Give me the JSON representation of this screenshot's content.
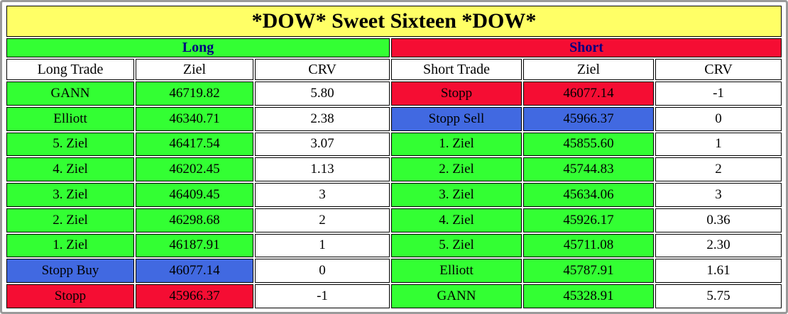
{
  "title": "*DOW* Sweet Sixteen *DOW*",
  "colors": {
    "title_bg": "#ffff66",
    "green": "#33ff33",
    "red": "#f50d33",
    "blue": "#4169e1",
    "section_text": "#000080",
    "frame_border": "#9a9a9a"
  },
  "long": {
    "header": "Long",
    "columns": [
      "Long Trade",
      "Ziel",
      "CRV"
    ]
  },
  "short": {
    "header": "Short",
    "columns": [
      "Short Trade",
      "Ziel",
      "CRV"
    ]
  },
  "rows": [
    {
      "long": {
        "trade": "GANN",
        "ziel": "46719.82",
        "crv": "5.80",
        "color": "green"
      },
      "short": {
        "trade": "Stopp",
        "ziel": "46077.14",
        "crv": "-1",
        "color": "red"
      }
    },
    {
      "long": {
        "trade": "Elliott",
        "ziel": "46340.71",
        "crv": "2.38",
        "color": "green"
      },
      "short": {
        "trade": "Stopp Sell",
        "ziel": "45966.37",
        "crv": "0",
        "color": "blue"
      }
    },
    {
      "long": {
        "trade": "5. Ziel",
        "ziel": "46417.54",
        "crv": "3.07",
        "color": "green"
      },
      "short": {
        "trade": "1. Ziel",
        "ziel": "45855.60",
        "crv": "1",
        "color": "green"
      }
    },
    {
      "long": {
        "trade": "4. Ziel",
        "ziel": "46202.45",
        "crv": "1.13",
        "color": "green"
      },
      "short": {
        "trade": "2. Ziel",
        "ziel": "45744.83",
        "crv": "2",
        "color": "green"
      }
    },
    {
      "long": {
        "trade": "3. Ziel",
        "ziel": "46409.45",
        "crv": "3",
        "color": "green"
      },
      "short": {
        "trade": "3. Ziel",
        "ziel": "45634.06",
        "crv": "3",
        "color": "green"
      }
    },
    {
      "long": {
        "trade": "2. Ziel",
        "ziel": "46298.68",
        "crv": "2",
        "color": "green"
      },
      "short": {
        "trade": "4. Ziel",
        "ziel": "45926.17",
        "crv": "0.36",
        "color": "green"
      }
    },
    {
      "long": {
        "trade": "1. Ziel",
        "ziel": "46187.91",
        "crv": "1",
        "color": "green"
      },
      "short": {
        "trade": "5. Ziel",
        "ziel": "45711.08",
        "crv": "2.30",
        "color": "green"
      }
    },
    {
      "long": {
        "trade": "Stopp Buy",
        "ziel": "46077.14",
        "crv": "0",
        "color": "blue"
      },
      "short": {
        "trade": "Elliott",
        "ziel": "45787.91",
        "crv": "1.61",
        "color": "green"
      }
    },
    {
      "long": {
        "trade": "Stopp",
        "ziel": "45966.37",
        "crv": "-1",
        "color": "red"
      },
      "short": {
        "trade": "GANN",
        "ziel": "45328.91",
        "crv": "5.75",
        "color": "green"
      }
    }
  ],
  "chart_data": {
    "type": "table",
    "title": "*DOW* Sweet Sixteen *DOW*",
    "sections": [
      "Long",
      "Short"
    ],
    "columns": [
      "Long Trade",
      "Ziel",
      "CRV",
      "Short Trade",
      "Ziel",
      "CRV"
    ],
    "rows": [
      [
        "GANN",
        "46719.82",
        "5.80",
        "Stopp",
        "46077.14",
        "-1"
      ],
      [
        "Elliott",
        "46340.71",
        "2.38",
        "Stopp Sell",
        "45966.37",
        "0"
      ],
      [
        "5. Ziel",
        "46417.54",
        "3.07",
        "1. Ziel",
        "45855.60",
        "1"
      ],
      [
        "4. Ziel",
        "46202.45",
        "1.13",
        "2. Ziel",
        "45744.83",
        "2"
      ],
      [
        "3. Ziel",
        "46409.45",
        "3",
        "3. Ziel",
        "45634.06",
        "3"
      ],
      [
        "2. Ziel",
        "46298.68",
        "2",
        "4. Ziel",
        "45926.17",
        "0.36"
      ],
      [
        "1. Ziel",
        "46187.91",
        "1",
        "5. Ziel",
        "45711.08",
        "2.30"
      ],
      [
        "Stopp Buy",
        "46077.14",
        "0",
        "Elliott",
        "45787.91",
        "1.61"
      ],
      [
        "Stopp",
        "45966.37",
        "-1",
        "GANN",
        "45328.91",
        "5.75"
      ]
    ]
  }
}
